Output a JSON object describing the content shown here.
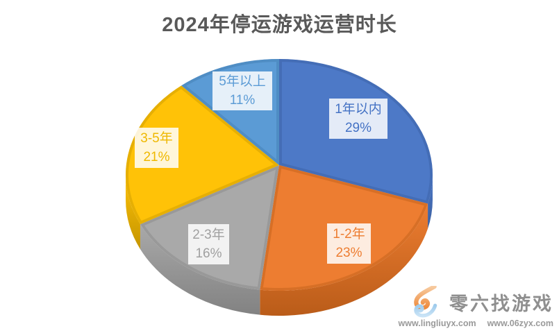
{
  "chart_data": {
    "type": "pie",
    "projection": "3d",
    "title": "2024年停运游戏运营时长",
    "start_angle_deg": 0,
    "direction": "clockwise",
    "legend_position": "none",
    "labels_on_slices": true,
    "unit": "%",
    "total": 100,
    "slices": [
      {
        "label": "1年以内",
        "value": 29,
        "pct_label": "29%",
        "color": "#4D79C7",
        "side_color": "#3A5E9F",
        "text_color": "#4472C4"
      },
      {
        "label": "1-2年",
        "value": 23,
        "pct_label": "23%",
        "color": "#ED7D31",
        "side_color": "#BA5C19",
        "text_color": "#ED7D31"
      },
      {
        "label": "2-3年",
        "value": 16,
        "pct_label": "16%",
        "color": "#A9A9A9",
        "side_color": "#828282",
        "text_color": "#A0A0A0"
      },
      {
        "label": "3-5年",
        "value": 21,
        "pct_label": "21%",
        "color": "#FFC207",
        "side_color": "#C49500",
        "text_color": "#EFB800"
      },
      {
        "label": "5年以上",
        "value": 11,
        "pct_label": "11%",
        "color": "#5B9BD5",
        "side_color": "#4179AE",
        "text_color": "#5B9BD5"
      }
    ]
  },
  "watermark": {
    "brand": "零六找游戏",
    "url_left": "www.lingliuyx.com",
    "url_right": "www.06zyx.com",
    "logo": "flame-swirl-icon",
    "text_color": "#9A9A9A",
    "logo_colors": {
      "flame_top": "#F7CBA0",
      "flame_bottom": "#EE8A3C",
      "swirl_top": "#9FCBEC",
      "swirl_bottom": "#C9E3F6"
    }
  }
}
